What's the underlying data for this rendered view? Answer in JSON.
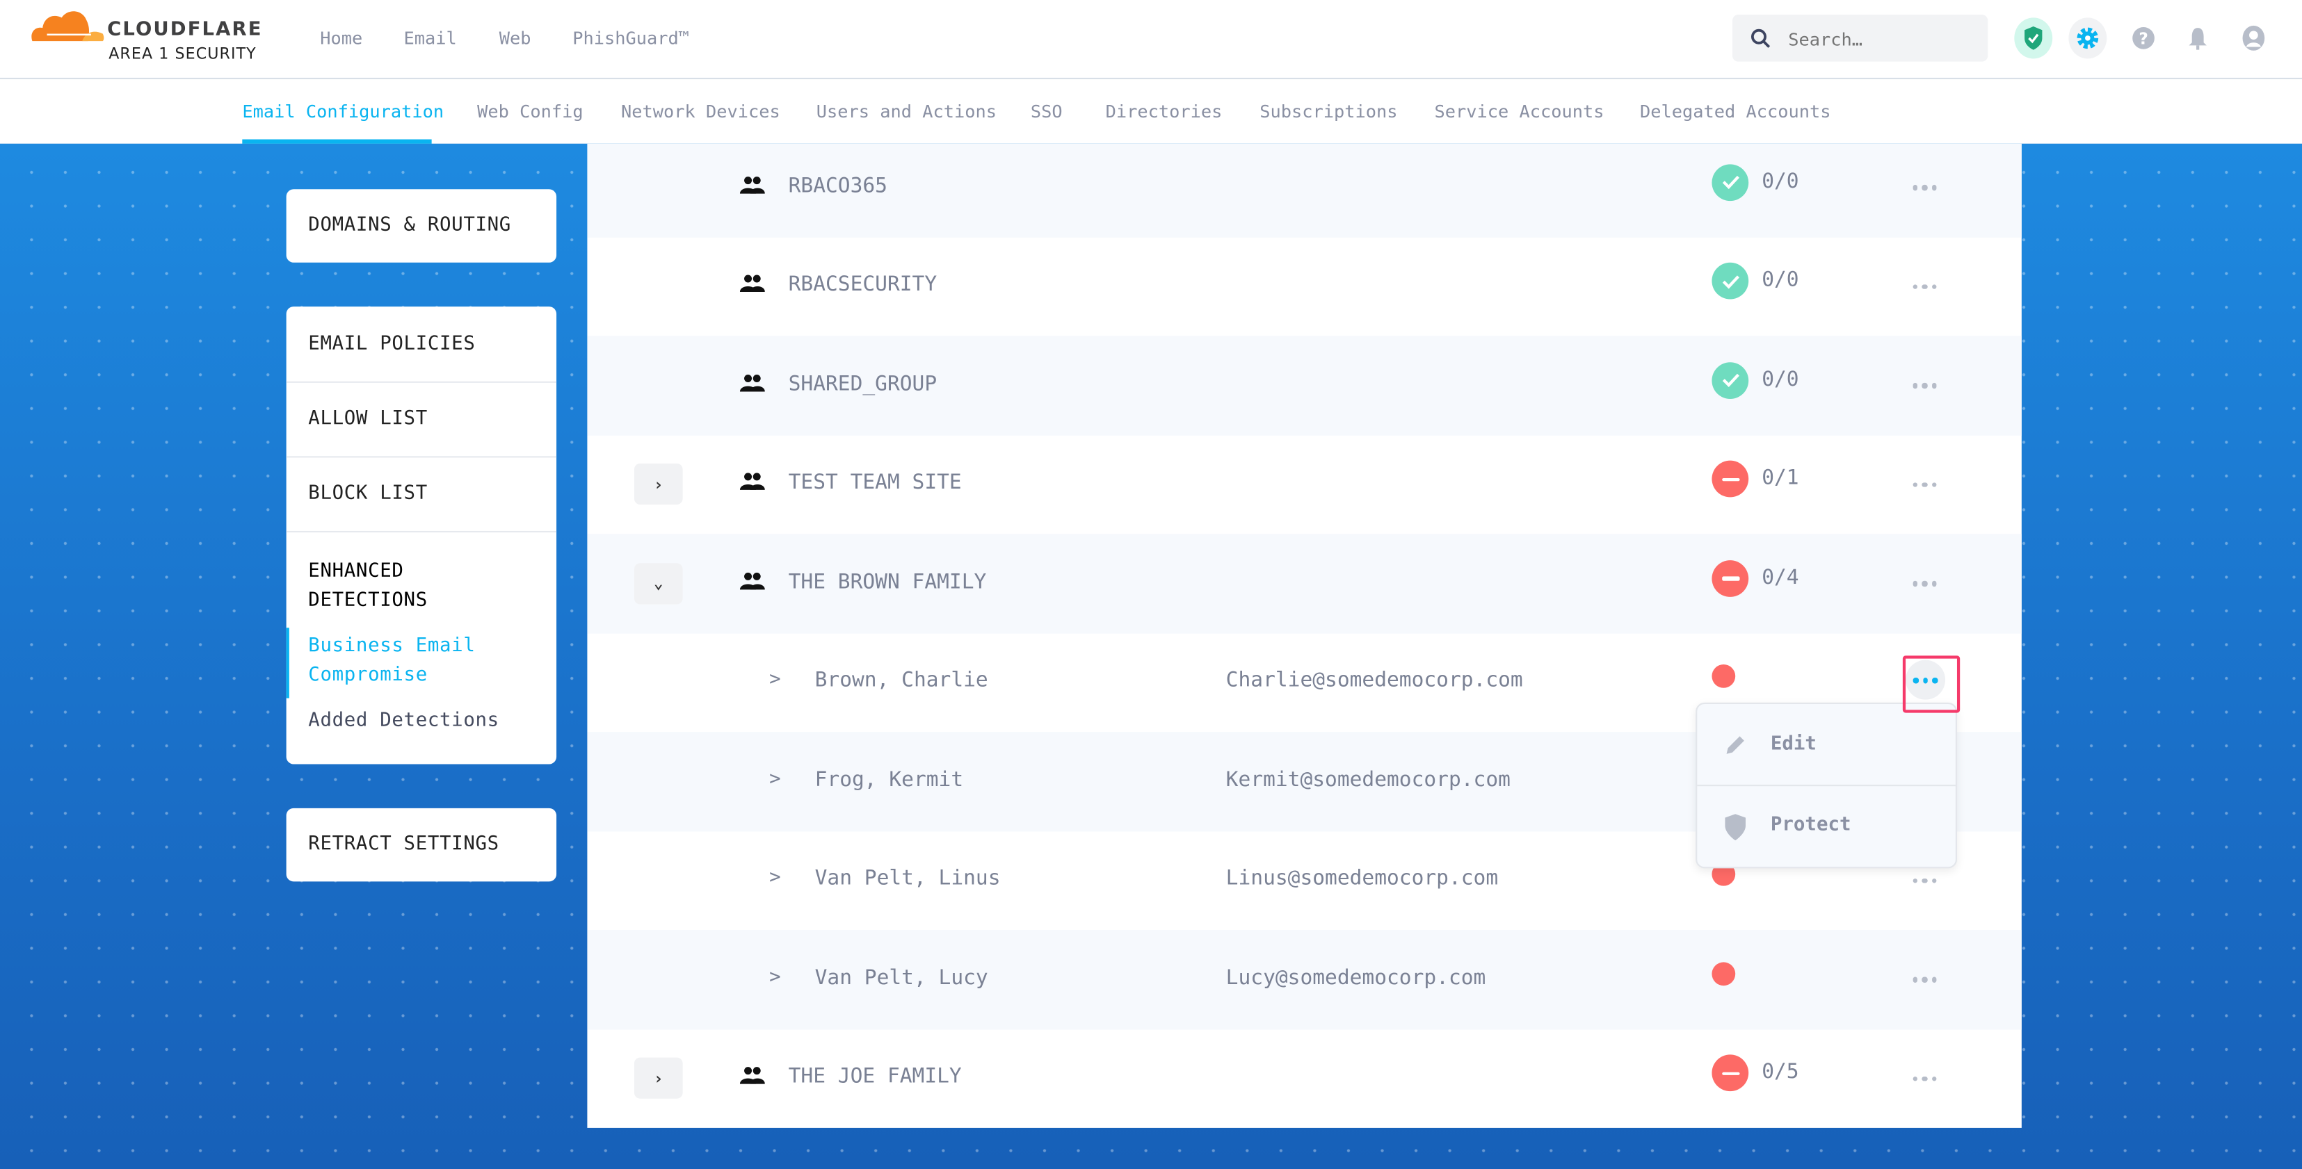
{
  "brand": {
    "name": "CLOUDFLARE",
    "product": "AREA 1 SECURITY"
  },
  "top_nav": [
    "Home",
    "Email",
    "Web",
    "PhishGuard™"
  ],
  "search": {
    "placeholder": "Search…"
  },
  "header_icons": [
    "shield-check-icon",
    "gear-icon",
    "help-icon",
    "bell-icon",
    "user-icon"
  ],
  "sub_tabs": [
    "Email Configuration",
    "Web Config",
    "Network Devices",
    "Users and Actions",
    "SSO",
    "Directories",
    "Subscriptions",
    "Service Accounts",
    "Delegated Accounts"
  ],
  "active_tab": "Email Configuration",
  "sidebar": {
    "domains": "DOMAINS & ROUTING",
    "email_policies": "EMAIL POLICIES",
    "allow_list": "ALLOW LIST",
    "block_list": "BLOCK LIST",
    "enhanced": "ENHANCED DETECTIONS",
    "bec": "Business Email Compromise",
    "added": "Added Detections",
    "retract": "RETRACT SETTINGS"
  },
  "groups": [
    {
      "name": "RBACO365",
      "status": "ok",
      "count": "0/0"
    },
    {
      "name": "RBACSECURITY",
      "status": "ok",
      "count": "0/0"
    },
    {
      "name": "SHARED_GROUP",
      "status": "ok",
      "count": "0/0"
    },
    {
      "name": "TEST TEAM SITE",
      "status": "blocked",
      "count": "0/1",
      "expand": "collapsed"
    },
    {
      "name": "THE BROWN FAMILY",
      "status": "blocked",
      "count": "0/4",
      "expand": "expanded"
    },
    {
      "name": "THE JOE FAMILY",
      "status": "blocked",
      "count": "0/5",
      "expand": "collapsed"
    }
  ],
  "members": [
    {
      "chevron": ">",
      "name": "Brown, Charlie",
      "email": "Charlie@somedemocorp.com"
    },
    {
      "chevron": ">",
      "name": "Frog, Kermit",
      "email": "Kermit@somedemocorp.com"
    },
    {
      "chevron": ">",
      "name": "Van Pelt, Linus",
      "email": "Linus@somedemocorp.com"
    },
    {
      "chevron": ">",
      "name": "Van Pelt, Lucy",
      "email": "Lucy@somedemocorp.com"
    }
  ],
  "context_menu": {
    "edit": "Edit",
    "protect": "Protect"
  },
  "colors": {
    "accent": "#0ab4f0",
    "ok": "#6fdcbf",
    "blocked": "#fd6a66",
    "highlight": "#f53a6a"
  }
}
